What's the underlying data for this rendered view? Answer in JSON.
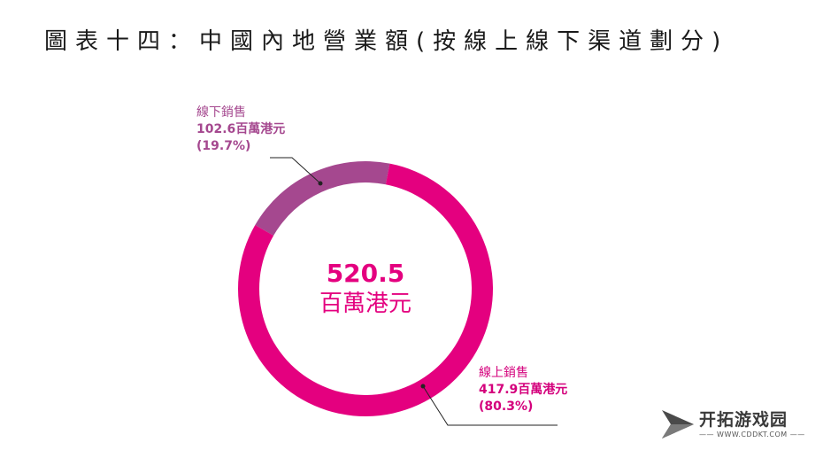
{
  "title": "圖表十四：中國內地營業額(按線上線下渠道劃分)",
  "chart_data": {
    "type": "pie",
    "variant": "donut",
    "unit": "百萬港元",
    "total": 520.5,
    "total_label": "520.5",
    "slices": [
      {
        "name": "線上銷售",
        "value": 417.9,
        "percent": 80.3,
        "value_label": "417.9百萬港元",
        "percent_label": "(80.3%)",
        "color": "#e4007f"
      },
      {
        "name": "線下銷售",
        "value": 102.6,
        "percent": 19.7,
        "value_label": "102.6百萬港元",
        "percent_label": "(19.7%)",
        "color": "#a5488f"
      }
    ]
  },
  "logo": {
    "name": "开拓游戏园",
    "site": "—— WWW.CDDKT.COM ——"
  }
}
